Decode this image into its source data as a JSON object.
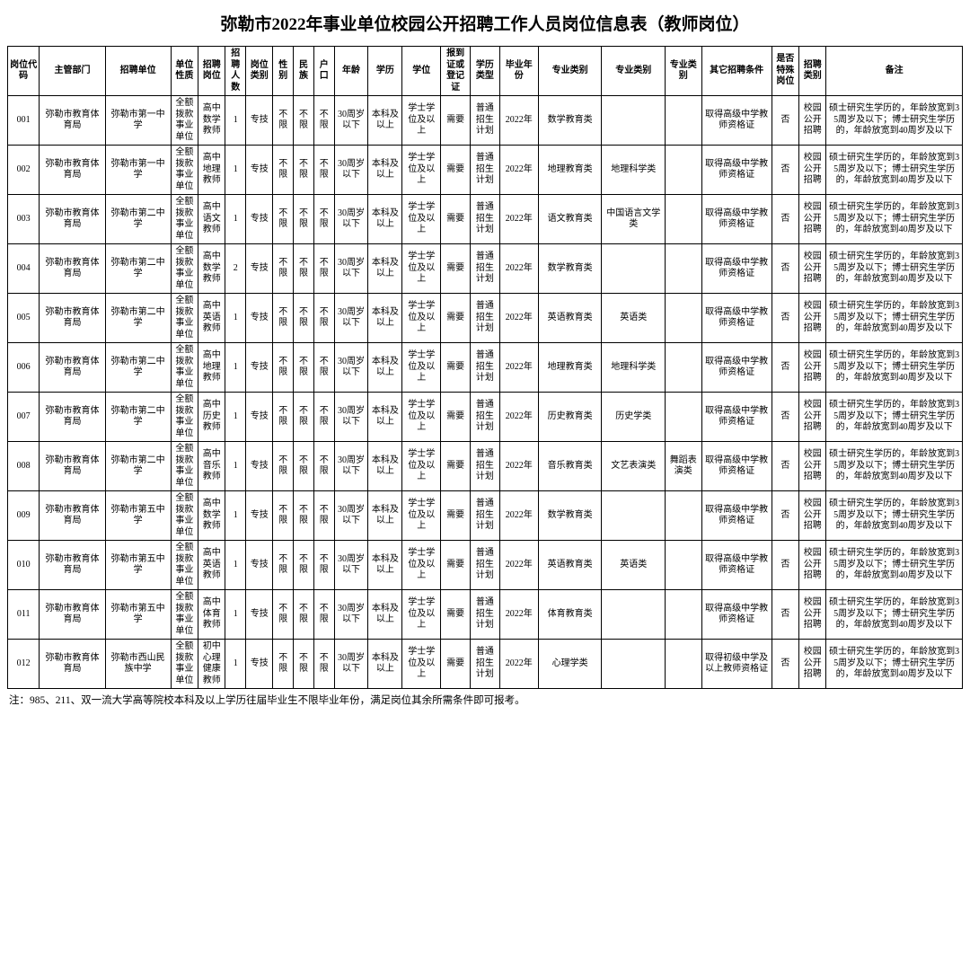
{
  "title": "弥勒市2022年事业单位校园公开招聘工作人员岗位信息表（教师岗位）",
  "footnote": "注：985、211、双一流大学高等院校本科及以上学历往届毕业生不限毕业年份，满足岗位其余所需条件即可报考。",
  "headers": [
    "岗位代码",
    "主管部门",
    "招聘单位",
    "单位性质",
    "招聘岗位",
    "招聘人数",
    "岗位类别",
    "性别",
    "民族",
    "户口",
    "年龄",
    "学历",
    "学位",
    "报到证或登记证",
    "学历类型",
    "毕业年份",
    "专业类别",
    "专业类别",
    "专业类别",
    "其它招聘条件",
    "是否特殊岗位",
    "招聘类别",
    "备注"
  ],
  "common": {
    "dept": "弥勒市教育体育局",
    "nature": "全额拨款事业单位",
    "cat": "专技",
    "sex": "不限",
    "eth": "不限",
    "reg": "不限",
    "age": "30周岁以下",
    "edu": "本科及以上",
    "deg": "学士学位及以上",
    "cert": "需要",
    "edut": "普通招生计划",
    "gy": "2022年",
    "sp": "否",
    "rt": "校园公开招聘",
    "other_hs": "取得高级中学教师资格证",
    "other_ms": "取得初级中学及以上教师资格证",
    "remark": "硕士研究生学历的，年龄放宽到35周岁及以下；博士研究生学历的，年龄放宽到40周岁及以下"
  },
  "rows": [
    {
      "code": "001",
      "unit": "弥勒市第一中学",
      "post": "高中数学教师",
      "num": "1",
      "m1": "数学教育类",
      "m2": "",
      "m3": "",
      "other": "hs"
    },
    {
      "code": "002",
      "unit": "弥勒市第一中学",
      "post": "高中地理教师",
      "num": "1",
      "m1": "地理教育类",
      "m2": "地理科学类",
      "m3": "",
      "other": "hs"
    },
    {
      "code": "003",
      "unit": "弥勒市第二中学",
      "post": "高中语文教师",
      "num": "1",
      "m1": "语文教育类",
      "m2": "中国语言文学类",
      "m3": "",
      "other": "hs"
    },
    {
      "code": "004",
      "unit": "弥勒市第二中学",
      "post": "高中数学教师",
      "num": "2",
      "m1": "数学教育类",
      "m2": "",
      "m3": "",
      "other": "hs"
    },
    {
      "code": "005",
      "unit": "弥勒市第二中学",
      "post": "高中英语教师",
      "num": "1",
      "m1": "英语教育类",
      "m2": "英语类",
      "m3": "",
      "other": "hs"
    },
    {
      "code": "006",
      "unit": "弥勒市第二中学",
      "post": "高中地理教师",
      "num": "1",
      "m1": "地理教育类",
      "m2": "地理科学类",
      "m3": "",
      "other": "hs"
    },
    {
      "code": "007",
      "unit": "弥勒市第二中学",
      "post": "高中历史教师",
      "num": "1",
      "m1": "历史教育类",
      "m2": "历史学类",
      "m3": "",
      "other": "hs"
    },
    {
      "code": "008",
      "unit": "弥勒市第二中学",
      "post": "高中音乐教师",
      "num": "1",
      "m1": "音乐教育类",
      "m2": "文艺表演类",
      "m3": "舞蹈表演类",
      "other": "hs"
    },
    {
      "code": "009",
      "unit": "弥勒市第五中学",
      "post": "高中数学教师",
      "num": "1",
      "m1": "数学教育类",
      "m2": "",
      "m3": "",
      "other": "hs"
    },
    {
      "code": "010",
      "unit": "弥勒市第五中学",
      "post": "高中英语教师",
      "num": "1",
      "m1": "英语教育类",
      "m2": "英语类",
      "m3": "",
      "other": "hs"
    },
    {
      "code": "011",
      "unit": "弥勒市第五中学",
      "post": "高中体育教师",
      "num": "1",
      "m1": "体育教育类",
      "m2": "",
      "m3": "",
      "other": "hs"
    },
    {
      "code": "012",
      "unit": "弥勒市西山民族中学",
      "post": "初中心理健康教师",
      "num": "1",
      "m1": "心理学类",
      "m2": "",
      "m3": "",
      "other": "ms"
    }
  ]
}
